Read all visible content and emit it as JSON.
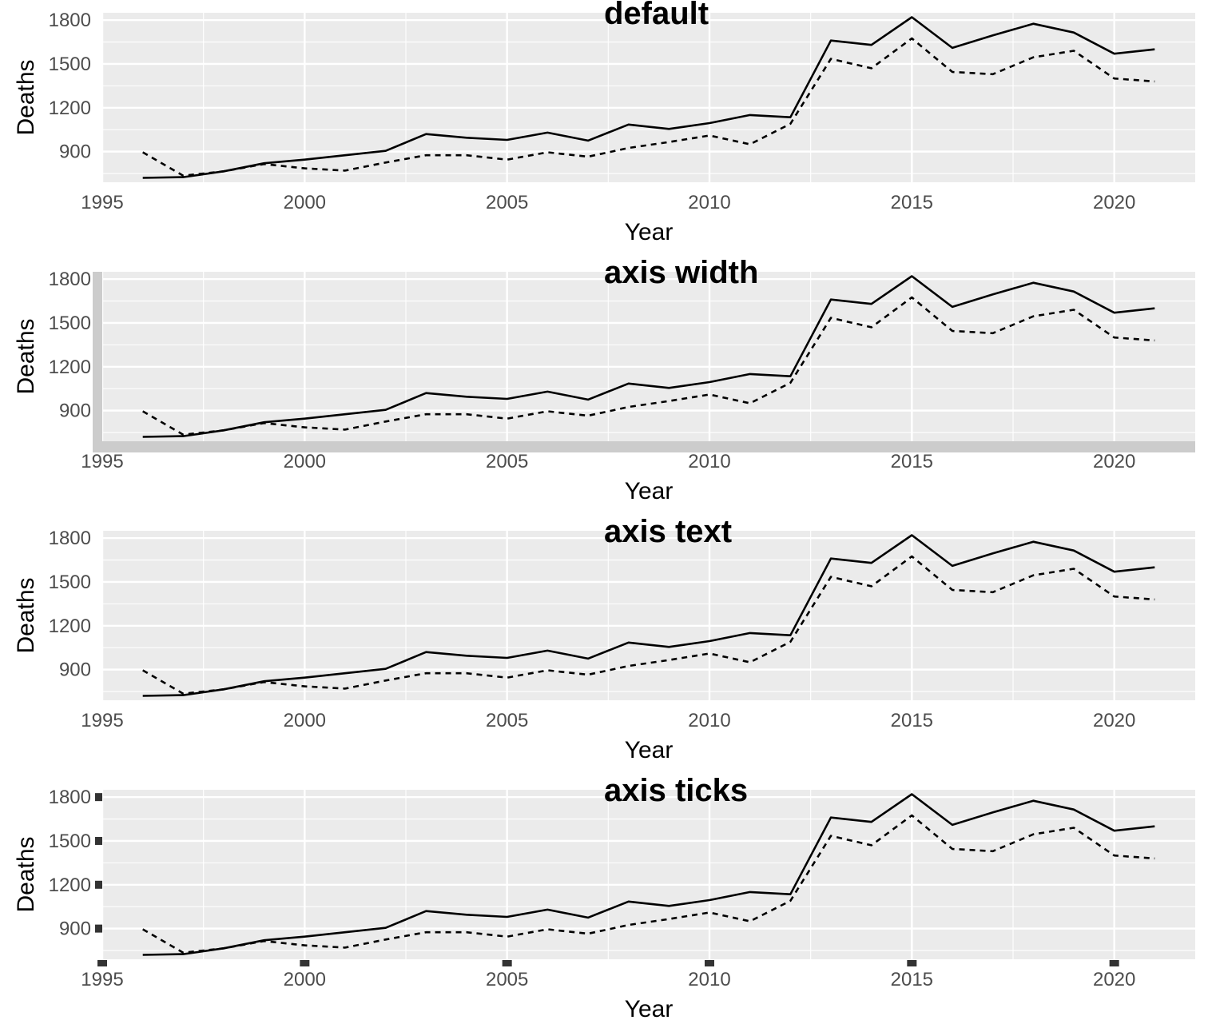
{
  "chart_data": [
    {
      "type": "line",
      "title": "default",
      "xlabel": "Year",
      "ylabel": "Deaths",
      "xlim": [
        1995,
        2022
      ],
      "ylim": [
        690,
        1850
      ],
      "x_ticks": [
        1995,
        2000,
        2005,
        2010,
        2015,
        2020
      ],
      "y_ticks": [
        900,
        1200,
        1500,
        1800
      ],
      "tick_label_color": "#4d4d4d",
      "axis_line": false,
      "tick_marks": false,
      "grid": true,
      "legend": "none",
      "series": [
        {
          "line_style": "solid",
          "x": [
            1996,
            1997,
            1998,
            1999,
            2000,
            2001,
            2002,
            2003,
            2004,
            2005,
            2006,
            2007,
            2008,
            2009,
            2010,
            2011,
            2012,
            2013,
            2014,
            2015,
            2016,
            2017,
            2018,
            2019,
            2020,
            2021
          ],
          "values": [
            720,
            725,
            765,
            820,
            845,
            875,
            905,
            1020,
            995,
            980,
            1030,
            975,
            1085,
            1055,
            1095,
            1150,
            1135,
            1660,
            1630,
            1820,
            1610,
            1695,
            1775,
            1715,
            1570,
            1600
          ]
        },
        {
          "line_style": "dashed",
          "x": [
            1996,
            1997,
            1998,
            1999,
            2000,
            2001,
            2002,
            2003,
            2004,
            2005,
            2006,
            2007,
            2008,
            2009,
            2010,
            2011,
            2012,
            2013,
            2014,
            2015,
            2016,
            2017,
            2018,
            2019,
            2020,
            2021
          ],
          "values": [
            895,
            735,
            765,
            815,
            785,
            770,
            825,
            875,
            875,
            845,
            895,
            865,
            925,
            965,
            1010,
            950,
            1090,
            1535,
            1470,
            1675,
            1445,
            1430,
            1545,
            1590,
            1400,
            1380
          ]
        }
      ]
    },
    {
      "type": "line",
      "title": "axis width",
      "xlabel": "Year",
      "ylabel": "Deaths",
      "xlim": [
        1995,
        2022
      ],
      "ylim": [
        690,
        1850
      ],
      "x_ticks": [
        1995,
        2000,
        2005,
        2010,
        2015,
        2020
      ],
      "y_ticks": [
        900,
        1200,
        1500,
        1800
      ],
      "tick_label_color": "#4d4d4d",
      "axis_line": true,
      "axis_line_color": "#cccccc",
      "tick_marks": false,
      "grid": true,
      "legend": "none",
      "series": [
        {
          "line_style": "solid",
          "x": [
            1996,
            1997,
            1998,
            1999,
            2000,
            2001,
            2002,
            2003,
            2004,
            2005,
            2006,
            2007,
            2008,
            2009,
            2010,
            2011,
            2012,
            2013,
            2014,
            2015,
            2016,
            2017,
            2018,
            2019,
            2020,
            2021
          ],
          "values": [
            720,
            725,
            765,
            820,
            845,
            875,
            905,
            1020,
            995,
            980,
            1030,
            975,
            1085,
            1055,
            1095,
            1150,
            1135,
            1660,
            1630,
            1820,
            1610,
            1695,
            1775,
            1715,
            1570,
            1600
          ]
        },
        {
          "line_style": "dashed",
          "x": [
            1996,
            1997,
            1998,
            1999,
            2000,
            2001,
            2002,
            2003,
            2004,
            2005,
            2006,
            2007,
            2008,
            2009,
            2010,
            2011,
            2012,
            2013,
            2014,
            2015,
            2016,
            2017,
            2018,
            2019,
            2020,
            2021
          ],
          "values": [
            895,
            735,
            765,
            815,
            785,
            770,
            825,
            875,
            875,
            845,
            895,
            865,
            925,
            965,
            1010,
            950,
            1090,
            1535,
            1470,
            1675,
            1445,
            1430,
            1545,
            1590,
            1400,
            1380
          ]
        }
      ]
    },
    {
      "type": "line",
      "title": "axis text",
      "xlabel": "Year",
      "ylabel": "Deaths",
      "xlim": [
        1995,
        2022
      ],
      "ylim": [
        690,
        1850
      ],
      "x_ticks": [
        1995,
        2000,
        2005,
        2010,
        2015,
        2020
      ],
      "y_ticks": [
        900,
        1200,
        1500,
        1800
      ],
      "tick_label_color": "#0000ff",
      "axis_line": false,
      "tick_marks": false,
      "grid": true,
      "legend": "none",
      "series": [
        {
          "line_style": "solid",
          "x": [
            1996,
            1997,
            1998,
            1999,
            2000,
            2001,
            2002,
            2003,
            2004,
            2005,
            2006,
            2007,
            2008,
            2009,
            2010,
            2011,
            2012,
            2013,
            2014,
            2015,
            2016,
            2017,
            2018,
            2019,
            2020,
            2021
          ],
          "values": [
            720,
            725,
            765,
            820,
            845,
            875,
            905,
            1020,
            995,
            980,
            1030,
            975,
            1085,
            1055,
            1095,
            1150,
            1135,
            1660,
            1630,
            1820,
            1610,
            1695,
            1775,
            1715,
            1570,
            1600
          ]
        },
        {
          "line_style": "dashed",
          "x": [
            1996,
            1997,
            1998,
            1999,
            2000,
            2001,
            2002,
            2003,
            2004,
            2005,
            2006,
            2007,
            2008,
            2009,
            2010,
            2011,
            2012,
            2013,
            2014,
            2015,
            2016,
            2017,
            2018,
            2019,
            2020,
            2021
          ],
          "values": [
            895,
            735,
            765,
            815,
            785,
            770,
            825,
            875,
            875,
            845,
            895,
            865,
            925,
            965,
            1010,
            950,
            1090,
            1535,
            1470,
            1675,
            1445,
            1430,
            1545,
            1590,
            1400,
            1380
          ]
        }
      ]
    },
    {
      "type": "line",
      "title": "axis ticks",
      "xlabel": "Year",
      "ylabel": "Deaths",
      "xlim": [
        1995,
        2022
      ],
      "ylim": [
        690,
        1850
      ],
      "x_ticks": [
        1995,
        2000,
        2005,
        2010,
        2015,
        2020
      ],
      "y_ticks": [
        900,
        1200,
        1500,
        1800
      ],
      "tick_label_color": "#4d4d4d",
      "axis_line": false,
      "tick_marks": true,
      "tick_mark_color": "#333333",
      "grid": true,
      "legend": "none",
      "series": [
        {
          "line_style": "solid",
          "x": [
            1996,
            1997,
            1998,
            1999,
            2000,
            2001,
            2002,
            2003,
            2004,
            2005,
            2006,
            2007,
            2008,
            2009,
            2010,
            2011,
            2012,
            2013,
            2014,
            2015,
            2016,
            2017,
            2018,
            2019,
            2020,
            2021
          ],
          "values": [
            720,
            725,
            765,
            820,
            845,
            875,
            905,
            1020,
            995,
            980,
            1030,
            975,
            1085,
            1055,
            1095,
            1150,
            1135,
            1660,
            1630,
            1820,
            1610,
            1695,
            1775,
            1715,
            1570,
            1600
          ]
        },
        {
          "line_style": "dashed",
          "x": [
            1996,
            1997,
            1998,
            1999,
            2000,
            2001,
            2002,
            2003,
            2004,
            2005,
            2006,
            2007,
            2008,
            2009,
            2010,
            2011,
            2012,
            2013,
            2014,
            2015,
            2016,
            2017,
            2018,
            2019,
            2020,
            2021
          ],
          "values": [
            895,
            735,
            765,
            815,
            785,
            770,
            825,
            875,
            875,
            845,
            895,
            865,
            925,
            965,
            1010,
            950,
            1090,
            1535,
            1470,
            1675,
            1445,
            1430,
            1545,
            1590,
            1400,
            1380
          ]
        }
      ]
    }
  ]
}
